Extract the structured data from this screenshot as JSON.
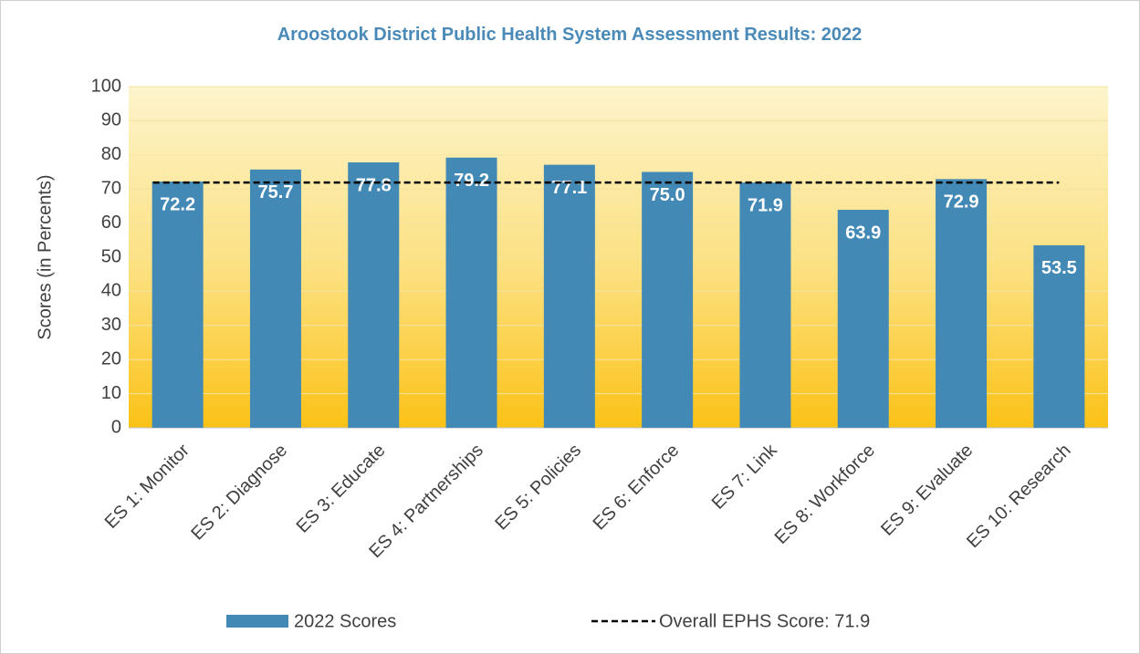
{
  "chart_data": {
    "type": "bar",
    "title": "Aroostook District Public Health System Assessment Results: 2022",
    "y_label": "Scores (in Percents)",
    "categories": [
      "ES 1: Monitor",
      "ES 2: Diagnose",
      "ES 3: Educate",
      "ES 4: Partnerships",
      "ES 5: Policies",
      "ES 6: Enforce",
      "ES 7: Link",
      "ES 8: Workforce",
      "ES 9: Evaluate",
      "ES 10: Research"
    ],
    "series": [
      {
        "name": "2022 Scores",
        "type": "bar",
        "color": "#4389b5",
        "values": [
          72.2,
          75.7,
          77.8,
          79.2,
          77.1,
          75.0,
          71.9,
          63.9,
          72.9,
          53.5
        ],
        "value_labels": [
          "72.2",
          "75.7",
          "77.8",
          "79.2",
          "77.1",
          "75.0",
          "71.9",
          "63.9",
          "72.9",
          "53.5"
        ]
      },
      {
        "name": "Overall EPHS Score: 71.9",
        "type": "line",
        "color": "#000000",
        "dashed": true,
        "values": [
          71.9,
          71.9,
          71.9,
          71.9,
          71.9,
          71.9,
          71.9,
          71.9,
          71.9,
          71.9
        ]
      }
    ],
    "ylim": [
      0,
      100
    ],
    "yticks": [
      0,
      10,
      20,
      30,
      40,
      50,
      60,
      70,
      80,
      90,
      100
    ],
    "grid": true,
    "legend": "bottom"
  }
}
